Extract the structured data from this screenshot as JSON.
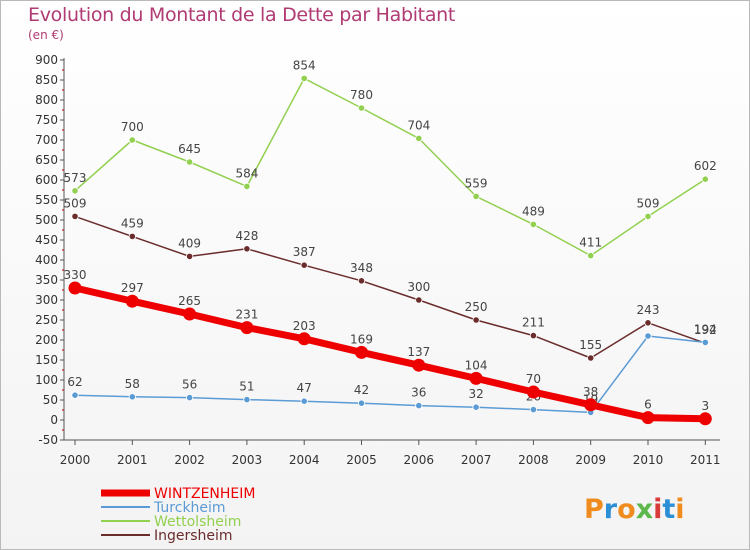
{
  "header": {
    "title": "Evolution du Montant de la Dette par Habitant",
    "subtitle": "(en €)"
  },
  "logo": {
    "text": [
      "P",
      "r",
      "o",
      "x",
      "i",
      "t",
      "i"
    ],
    "colors": [
      "#f08c1e",
      "#2c8fd6",
      "#f08c1e",
      "#5cb84a",
      "#d93b3b",
      "#2c8fd6",
      "#f08c1e"
    ]
  },
  "chart_data": {
    "type": "line",
    "title": "Evolution du Montant de la Dette par Habitant",
    "subtitle": "(en €)",
    "categories": [
      "2000",
      "2001",
      "2002",
      "2003",
      "2004",
      "2005",
      "2006",
      "2007",
      "2008",
      "2009",
      "2010",
      "2011"
    ],
    "y_ticks": [
      "900",
      "850",
      "800",
      "750",
      "700",
      "650",
      "600",
      "550",
      "500",
      "450",
      "400",
      "350",
      "300",
      "250",
      "200",
      "150",
      "100",
      "50",
      "0",
      "-50"
    ],
    "ylim": [
      -50,
      900
    ],
    "grid": false,
    "legend_position": "bottom-left",
    "series": [
      {
        "name": "WINTZENHEIM",
        "color": "#ee0000",
        "emphasis": true,
        "values": [
          330,
          297,
          265,
          231,
          203,
          169,
          137,
          104,
          70,
          38,
          6,
          3
        ],
        "labels": [
          "330",
          "297",
          "265",
          "231",
          "203",
          "169",
          "137",
          "104",
          "70",
          "38",
          "6",
          "3"
        ]
      },
      {
        "name": "Turckheim",
        "color": "#5b9bd5",
        "values": [
          62,
          58,
          56,
          51,
          47,
          42,
          36,
          32,
          26,
          19,
          210,
          194
        ],
        "labels": [
          "62",
          "58",
          "56",
          "51",
          "47",
          "42",
          "36",
          "32",
          "26",
          "19",
          "",
          ""
        ]
      },
      {
        "name": "Wettolsheim",
        "color": "#92d050",
        "values": [
          573,
          700,
          645,
          584,
          854,
          780,
          704,
          559,
          489,
          411,
          509,
          602
        ],
        "labels": [
          "573",
          "700",
          "645",
          "584",
          "854",
          "780",
          "704",
          "559",
          "489",
          "411",
          "509",
          "602"
        ]
      },
      {
        "name": "Ingersheim",
        "color": "#6b2c2c",
        "values": [
          509,
          459,
          409,
          428,
          387,
          348,
          300,
          250,
          211,
          155,
          243,
          192
        ],
        "labels": [
          "509",
          "459",
          "409",
          "428",
          "387",
          "348",
          "300",
          "250",
          "211",
          "155",
          "243",
          "192"
        ]
      }
    ],
    "overlap_label": "194"
  }
}
